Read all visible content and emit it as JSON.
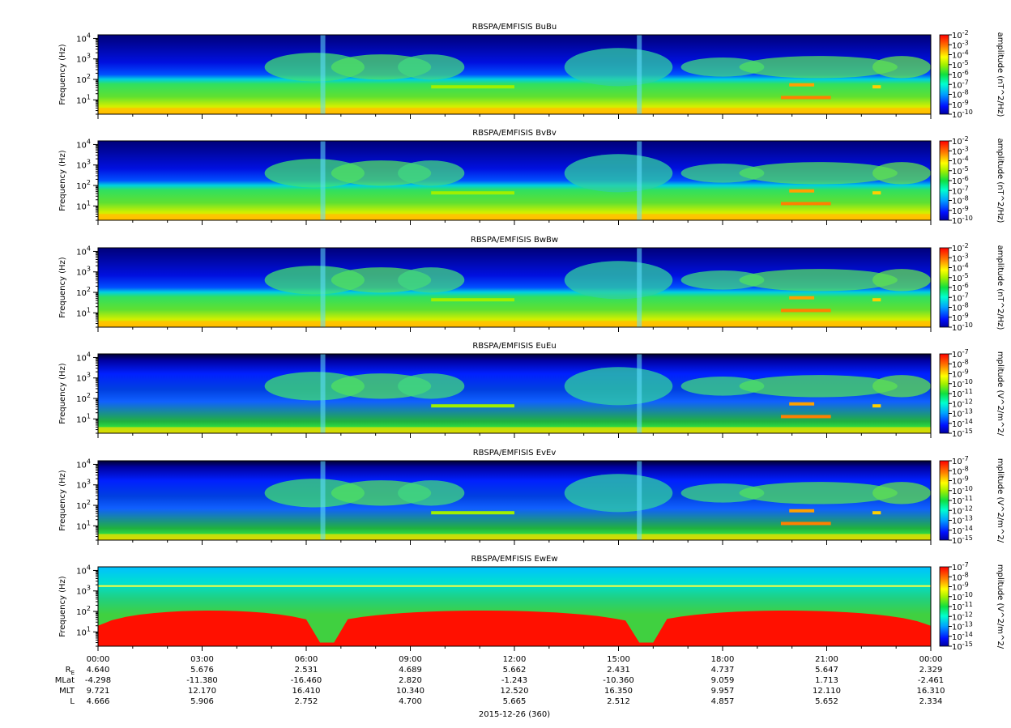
{
  "chart_data": {
    "type": "heatmap",
    "x_tick_labels": [
      "00:00",
      "03:00",
      "06:00",
      "09:00",
      "12:00",
      "15:00",
      "18:00",
      "21:00",
      "00:00"
    ],
    "xlabel": "2015-12-26 (360)",
    "y_scale": "log",
    "y_range_hz": [
      2,
      15000
    ],
    "colormap": "rainbow (blue-cyan-green-yellow-red)",
    "panels": [
      {
        "title": "RBSPA/EMFISIS  BuBu",
        "ylabel": "Frequency (Hz)",
        "cblabel": "amplitude (nT^2/Hz)",
        "cb_exponents": [
          "-2",
          "-3",
          "-4",
          "-5",
          "-6",
          "-7",
          "-8",
          "-9",
          "-10"
        ],
        "cb_range_log": [
          -10,
          -2
        ]
      },
      {
        "title": "RBSPA/EMFISIS  BvBv",
        "ylabel": "Frequency (Hz)",
        "cblabel": "amplitude (nT^2/Hz)",
        "cb_exponents": [
          "-2",
          "-3",
          "-4",
          "-5",
          "-6",
          "-7",
          "-8",
          "-9",
          "-10"
        ],
        "cb_range_log": [
          -10,
          -2
        ]
      },
      {
        "title": "RBSPA/EMFISIS  BwBw",
        "ylabel": "Frequency (Hz)",
        "cblabel": "amplitude (nT^2/Hz)",
        "cb_exponents": [
          "-2",
          "-3",
          "-4",
          "-5",
          "-6",
          "-7",
          "-8",
          "-9",
          "-10"
        ],
        "cb_range_log": [
          -10,
          -2
        ]
      },
      {
        "title": "RBSPA/EMFISIS  EuEu",
        "ylabel": "Frequency (Hz)",
        "cblabel": "mplitude (V^2/m^2/",
        "cb_exponents": [
          "-7",
          "-8",
          "-9",
          "-10",
          "-11",
          "-12",
          "-13",
          "-14",
          "-15"
        ],
        "cb_range_log": [
          -15,
          -7
        ]
      },
      {
        "title": "RBSPA/EMFISIS  EvEv",
        "ylabel": "Frequency (Hz)",
        "cblabel": "mplitude (V^2/m^2/",
        "cb_exponents": [
          "-7",
          "-8",
          "-9",
          "-10",
          "-11",
          "-12",
          "-13",
          "-14",
          "-15"
        ],
        "cb_range_log": [
          -15,
          -7
        ]
      },
      {
        "title": "RBSPA/EMFISIS  EwEw",
        "ylabel": "Frequency (Hz)",
        "cblabel": "mplitude (V^2/m^2/",
        "cb_exponents": [
          "-7",
          "-8",
          "-9",
          "-10",
          "-11",
          "-12",
          "-13",
          "-14",
          "-15"
        ],
        "cb_range_log": [
          -15,
          -7
        ]
      }
    ],
    "ephemeris": [
      {
        "label": "RE",
        "values": [
          "4.640",
          "5.676",
          "2.531",
          "4.689",
          "5.662",
          "2.431",
          "4.737",
          "5.647",
          "2.329"
        ]
      },
      {
        "label": "MLat",
        "values": [
          "-4.298",
          "-11.380",
          "-16.460",
          "2.820",
          "-1.243",
          "-10.360",
          "9.059",
          "1.713",
          "-2.461"
        ]
      },
      {
        "label": "MLT",
        "values": [
          "9.721",
          "12.170",
          "16.410",
          "10.340",
          "12.520",
          "16.350",
          "9.957",
          "12.110",
          "16.310"
        ]
      },
      {
        "label": "L",
        "values": [
          "4.666",
          "5.906",
          "2.752",
          "4.700",
          "5.665",
          "2.512",
          "4.857",
          "5.652",
          "2.334"
        ]
      }
    ]
  }
}
